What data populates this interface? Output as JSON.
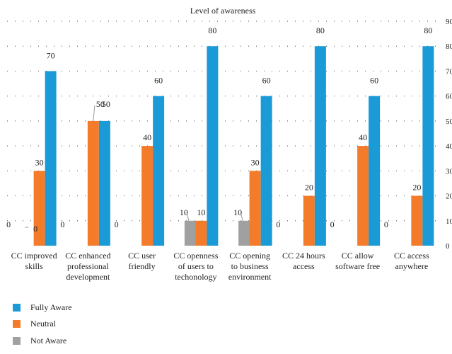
{
  "chart_data": {
    "type": "bar",
    "title": "Level of awareness",
    "xlabel": "",
    "ylabel": "",
    "ylim": [
      0,
      90
    ],
    "yticks": [
      0,
      10,
      20,
      30,
      40,
      50,
      60,
      70,
      80,
      90
    ],
    "grid": true,
    "legend_position": "bottom-left",
    "categories": [
      [
        "CC improved",
        "skills"
      ],
      [
        "CC enhanced",
        "professional",
        "development"
      ],
      [
        "CC user",
        "friendly"
      ],
      [
        "CC openness",
        "of users to",
        "techonology"
      ],
      [
        "CC opening",
        "to business",
        "environment"
      ],
      [
        "CC 24 hours",
        "access"
      ],
      [
        "CC allow",
        "software free"
      ],
      [
        "CC access",
        "anywhere"
      ]
    ],
    "series": [
      {
        "name": "Not Aware",
        "color": "#a0a0a0",
        "values": [
          0,
          0,
          0,
          10,
          10,
          0,
          0,
          0
        ]
      },
      {
        "name": "Neutral",
        "color": "#f47b2a",
        "values": [
          30,
          50,
          40,
          10,
          30,
          20,
          40,
          20
        ]
      },
      {
        "name": "Fully Aware",
        "color": "#1a9ad6",
        "values": [
          70,
          50,
          60,
          80,
          60,
          80,
          60,
          80
        ]
      }
    ],
    "legend_order": [
      "Fully Aware",
      "Neutral",
      "Not Aware"
    ]
  }
}
